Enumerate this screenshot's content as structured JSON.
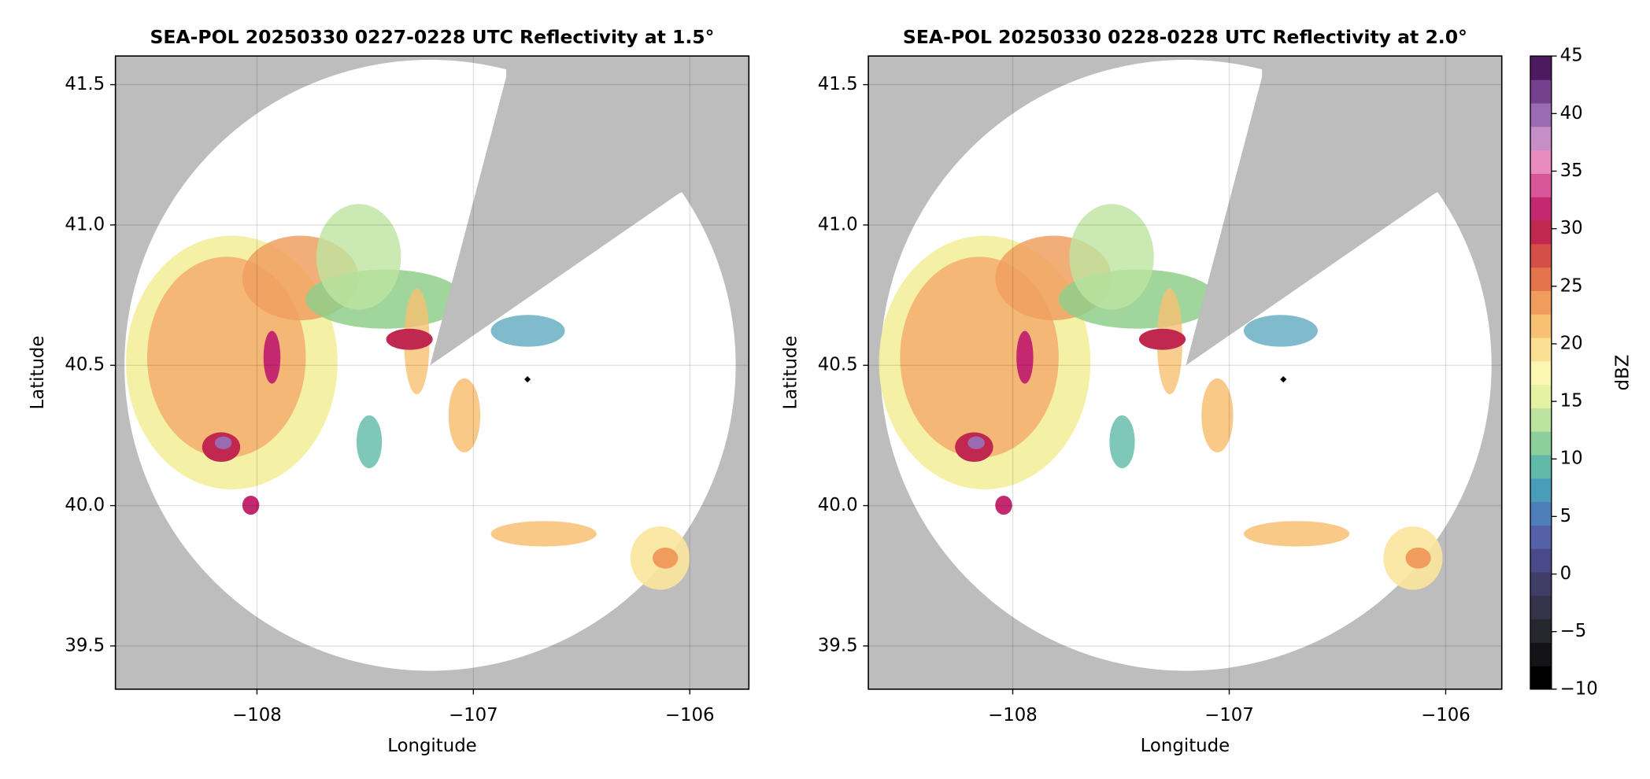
{
  "chart_data": [
    {
      "type": "ppi",
      "title": "SEA-POL 20250330 0227-0228 UTC Reflectivity at 1.5°",
      "xlabel": "Longitude",
      "ylabel": "Latitude",
      "xlim": [
        -108.654,
        -105.727
      ],
      "ylim": [
        39.346,
        41.602
      ],
      "xticks": [
        {
          "value": -108,
          "label": "−108"
        },
        {
          "value": -107,
          "label": "−107"
        },
        {
          "value": -106,
          "label": "−106"
        }
      ],
      "yticks": [
        39.5,
        {
          "value": 40,
          "label": "40.0"
        },
        40.5,
        {
          "value": 41,
          "label": "41.0"
        },
        41.5
      ],
      "grid": true
    },
    {
      "type": "ppi",
      "title": "SEA-POL 20250330 0228-0228 UTC Reflectivity at 2.0°",
      "xlabel": "Longitude",
      "ylabel": "Latitude",
      "xlim": [
        -108.667,
        -105.741
      ],
      "ylim": [
        39.346,
        41.602
      ],
      "xticks": [
        {
          "value": -108,
          "label": "−108"
        },
        {
          "value": -107,
          "label": "−107"
        },
        {
          "value": -106,
          "label": "−106"
        }
      ],
      "yticks": [
        39.5,
        {
          "value": 40,
          "label": "40.0"
        },
        40.5,
        {
          "value": 41,
          "label": "41.0"
        },
        41.5
      ],
      "grid": true
    },
    {
      "type": "colorbar",
      "label": "dBZ",
      "ylim": [
        -10,
        45
      ],
      "yticks": [
        {
          "value": -10,
          "label": "−10"
        },
        {
          "value": -5,
          "label": "−5"
        },
        0,
        5,
        10,
        15,
        20,
        25,
        30,
        35,
        40,
        45
      ],
      "colors": [
        "#000000",
        "#141418",
        "#26262e",
        "#35334a",
        "#3f3d66",
        "#4a4a8a",
        "#5460a8",
        "#4f7fbb",
        "#4a9db8",
        "#5fb9a6",
        "#8dcf9c",
        "#bde3a0",
        "#e5f2a2",
        "#fbf6b2",
        "#fbdf92",
        "#f8c072",
        "#f09c5c",
        "#e4744c",
        "#d44e48",
        "#c12850",
        "#c42970",
        "#d8579a",
        "#e98cbd",
        "#c58ec6",
        "#9a6bb0",
        "#74418f",
        "#4c1a5e"
      ]
    }
  ]
}
